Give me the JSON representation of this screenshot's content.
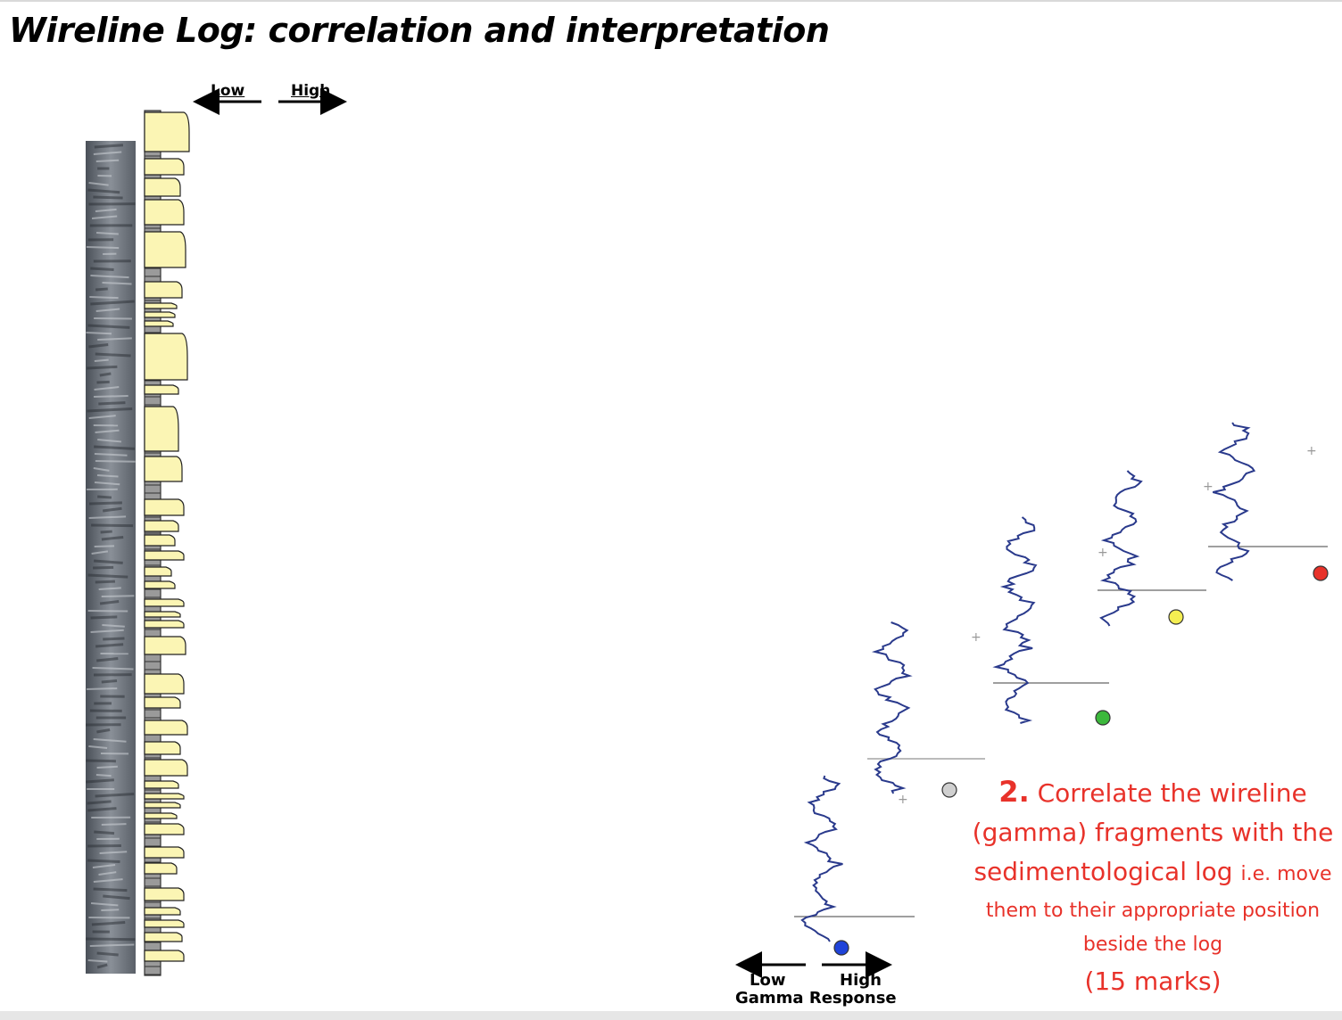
{
  "title": "Wireline Log: correlation and interpretation",
  "top_scale": {
    "low": "Low",
    "high": "High"
  },
  "instruction": {
    "number": "2.",
    "line1": "Correlate the wireline",
    "line2": "(gamma) fragments with the",
    "line3_big": "sedimentological log",
    "line3_small": "i.e. move",
    "line4": "them to their appropriate position",
    "line5": "beside the log",
    "marks": "(15 marks)"
  },
  "gamma_scale": {
    "low": "Low",
    "high": "High",
    "caption": "Gamma Response"
  },
  "fragments": [
    {
      "id": "blue",
      "color": "#1f43d9"
    },
    {
      "id": "grey",
      "color": "#d0d0d0"
    },
    {
      "id": "green",
      "color": "#3cb83c"
    },
    {
      "id": "yellow",
      "color": "#f4ee52"
    },
    {
      "id": "red",
      "color": "#e8322a"
    }
  ],
  "colors": {
    "curve": "#2a3a8c",
    "bed_fill": "#fbf5b4",
    "shale": "#9a9a9a",
    "instruction": "#e8322a"
  }
}
